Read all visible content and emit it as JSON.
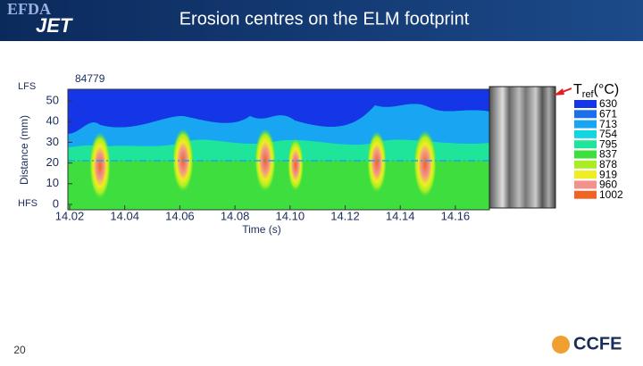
{
  "header": {
    "logo_top": "EFDA",
    "logo_bottom": "JET",
    "title": "Erosion centres on the ELM footprint"
  },
  "plot": {
    "shot": "84779",
    "y_label": "Distance (mm)",
    "x_label": "Time (s)",
    "lfs": "LFS",
    "hfs": "HFS",
    "yticks": [
      "50",
      "40",
      "30",
      "20",
      "10",
      "0"
    ],
    "xticks": [
      "14.02",
      "14.04",
      "14.06",
      "14.08",
      "14.10",
      "14.12",
      "14.14",
      "14.16"
    ]
  },
  "legend": {
    "symbol": "T",
    "subscript": "ref",
    "unit": "(°C)",
    "levels": [
      {
        "label": "630",
        "color": "#1436e6"
      },
      {
        "label": "671",
        "color": "#1c6fea"
      },
      {
        "label": "713",
        "color": "#18a6f2"
      },
      {
        "label": "754",
        "color": "#12d6e2"
      },
      {
        "label": "795",
        "color": "#1fe59a"
      },
      {
        "label": "837",
        "color": "#3ede3e"
      },
      {
        "label": "878",
        "color": "#a8ee22"
      },
      {
        "label": "919",
        "color": "#eeee22"
      },
      {
        "label": "960",
        "color": "#f2928a"
      },
      {
        "label": "1002",
        "color": "#ee6424"
      }
    ]
  },
  "footer": {
    "page": "20",
    "logo": "CCFE"
  }
}
